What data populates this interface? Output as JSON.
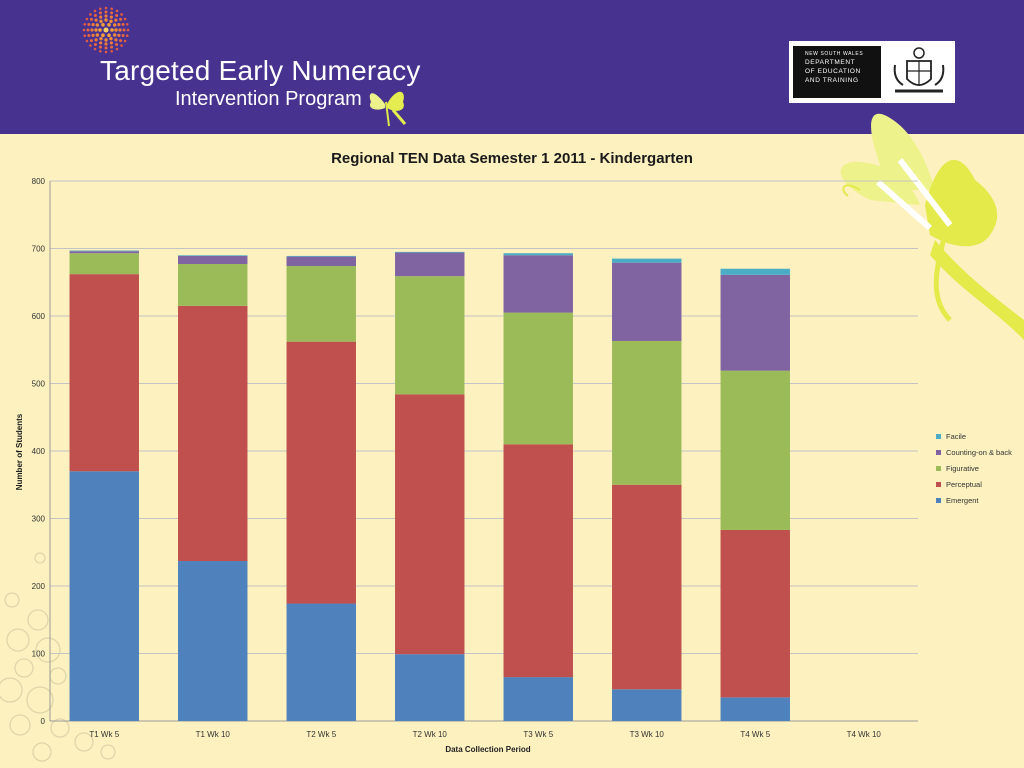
{
  "header": {
    "title_lead_1": "T",
    "title_rest_1": "argeted ",
    "title_lead_2": "E",
    "title_rest_2": "arly ",
    "title_lead_3": "N",
    "title_rest_3": "umeracy",
    "subtitle": "Intervention Program",
    "dept_lines": [
      "NEW SOUTH WALES",
      "DEPARTMENT",
      "OF EDUCATION",
      "AND TRAINING"
    ],
    "background_color": "#47338f",
    "logo_icon": "dot-sunburst-icon",
    "butterfly_icon": "butterfly-icon",
    "crest_icon": "coat-of-arms-icon"
  },
  "chart_data": {
    "type": "bar",
    "stacked": true,
    "title": "Regional TEN Data Semester 1 2011 - Kindergarten",
    "xlabel": "Data Collection Period",
    "ylabel": "Number of Students",
    "ylim": [
      0,
      800
    ],
    "yticks": [
      0,
      100,
      200,
      300,
      400,
      500,
      600,
      700,
      800
    ],
    "grid": true,
    "legend_position": "right",
    "categories": [
      "T1 Wk 5",
      "T1 Wk 10",
      "T2 Wk 5",
      "T2 Wk 10",
      "T3 Wk 5",
      "T3 Wk 10",
      "T4 Wk 5",
      "T4 Wk 10"
    ],
    "series": [
      {
        "name": "Emergent",
        "color": "#4f81bd",
        "values": [
          370,
          237,
          174,
          99,
          65,
          47,
          35,
          0
        ]
      },
      {
        "name": "Perceptual",
        "color": "#c0504d",
        "values": [
          292,
          378,
          388,
          385,
          345,
          303,
          248,
          0
        ]
      },
      {
        "name": "Figurative",
        "color": "#9bbb59",
        "values": [
          31,
          62,
          112,
          175,
          195,
          213,
          236,
          0
        ]
      },
      {
        "name": "Counting-on & back",
        "color": "#8064a2",
        "values": [
          3,
          12,
          14,
          35,
          85,
          116,
          142,
          0
        ]
      },
      {
        "name": "Facile",
        "color": "#4bacc6",
        "values": [
          1,
          1,
          1,
          1,
          3,
          6,
          9,
          0
        ]
      }
    ]
  }
}
